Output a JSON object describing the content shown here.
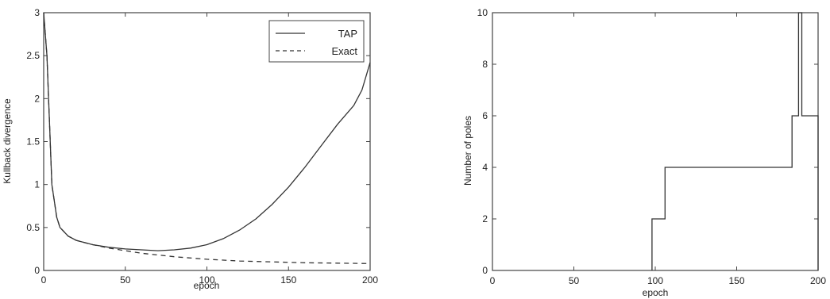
{
  "chart_data": [
    {
      "type": "line",
      "xlabel": "epoch",
      "ylabel": "Kullback divergence",
      "xlim": [
        0,
        200
      ],
      "ylim": [
        0,
        3
      ],
      "xticks": [
        "0",
        "50",
        "100",
        "150",
        "200"
      ],
      "yticks": [
        "0",
        "0.5",
        "1",
        "1.5",
        "2",
        "2.5",
        "3"
      ],
      "grid": false,
      "legend": "top-right",
      "series": [
        {
          "name": "TAP",
          "style": "solid",
          "color": "#333333",
          "x": [
            0,
            2,
            5,
            8,
            10,
            15,
            20,
            30,
            40,
            50,
            60,
            70,
            80,
            90,
            100,
            110,
            120,
            130,
            140,
            150,
            160,
            170,
            180,
            190,
            195,
            200
          ],
          "y": [
            3.0,
            2.5,
            1.0,
            0.62,
            0.5,
            0.4,
            0.35,
            0.3,
            0.27,
            0.25,
            0.24,
            0.23,
            0.24,
            0.26,
            0.3,
            0.37,
            0.47,
            0.6,
            0.77,
            0.97,
            1.2,
            1.45,
            1.7,
            1.92,
            2.1,
            2.42
          ]
        },
        {
          "name": "Exact",
          "style": "dashed",
          "color": "#333333",
          "x": [
            0,
            2,
            5,
            8,
            10,
            15,
            20,
            30,
            40,
            50,
            60,
            70,
            80,
            100,
            120,
            140,
            160,
            180,
            200
          ],
          "y": [
            3.0,
            2.5,
            1.0,
            0.62,
            0.5,
            0.4,
            0.35,
            0.3,
            0.26,
            0.23,
            0.2,
            0.18,
            0.16,
            0.13,
            0.11,
            0.1,
            0.09,
            0.085,
            0.08
          ]
        }
      ]
    },
    {
      "type": "line",
      "xlabel": "epoch",
      "ylabel": "Number of poles",
      "xlim": [
        0,
        200
      ],
      "ylim": [
        0,
        10
      ],
      "xticks": [
        "0",
        "50",
        "100",
        "150",
        "200"
      ],
      "yticks": [
        "0",
        "2",
        "4",
        "6",
        "8",
        "10"
      ],
      "grid": false,
      "series": [
        {
          "style": "step",
          "color": "#333333",
          "x": [
            98,
            98,
            101,
            101,
            103,
            103,
            106,
            106,
            182,
            182,
            184,
            184,
            185,
            185,
            186,
            186,
            188,
            188,
            190,
            190,
            200,
            200
          ],
          "y": [
            0,
            2,
            2,
            2,
            2,
            2,
            2,
            4,
            4,
            4,
            4,
            6,
            6,
            6,
            6,
            6,
            6,
            10,
            10,
            6,
            6,
            0
          ]
        }
      ]
    }
  ]
}
